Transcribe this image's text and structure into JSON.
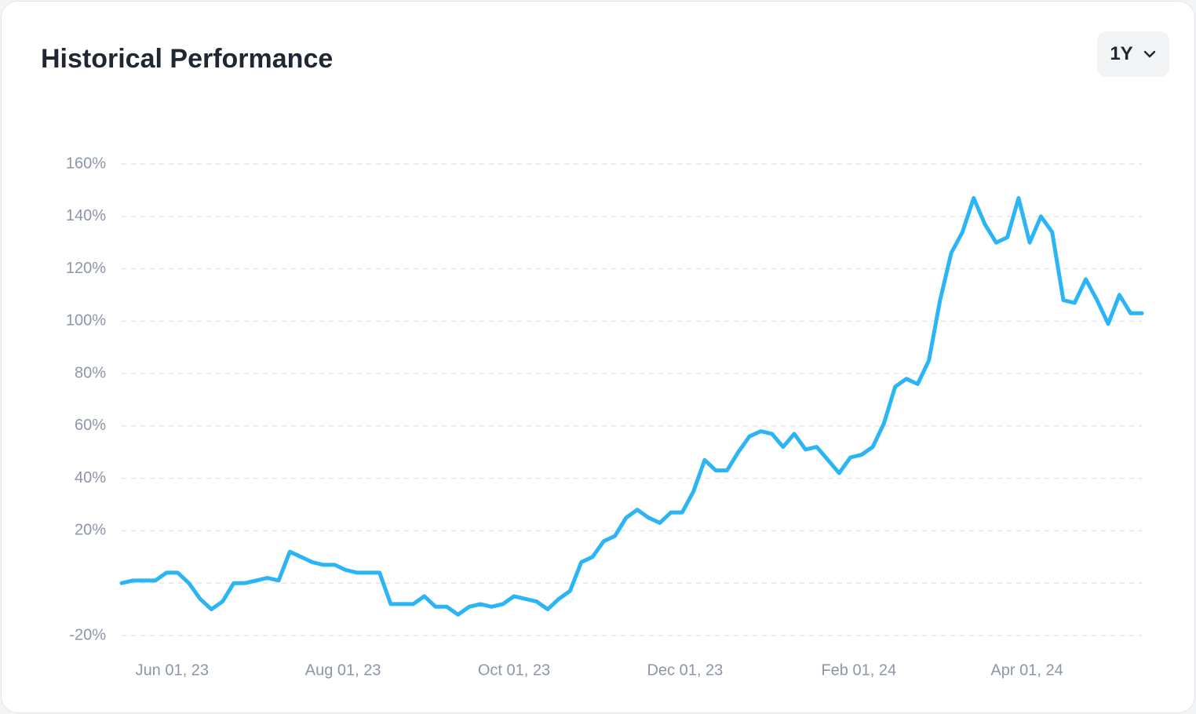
{
  "controls": {
    "range": "1Y"
  },
  "chart_data": {
    "type": "line",
    "title": "Historical Performance",
    "color": "#2bb5f5",
    "grid": true,
    "x": [
      "2023-05-14",
      "2023-05-18",
      "2023-05-22",
      "2023-05-26",
      "2023-05-30",
      "2023-06-03",
      "2023-06-07",
      "2023-06-11",
      "2023-06-15",
      "2023-06-19",
      "2023-06-23",
      "2023-06-27",
      "2023-07-01",
      "2023-07-05",
      "2023-07-09",
      "2023-07-13",
      "2023-07-17",
      "2023-07-21",
      "2023-07-25",
      "2023-07-29",
      "2023-08-02",
      "2023-08-06",
      "2023-08-10",
      "2023-08-14",
      "2023-08-18",
      "2023-08-22",
      "2023-08-26",
      "2023-08-30",
      "2023-09-03",
      "2023-09-07",
      "2023-09-11",
      "2023-09-15",
      "2023-09-19",
      "2023-09-23",
      "2023-09-27",
      "2023-10-01",
      "2023-10-05",
      "2023-10-09",
      "2023-10-13",
      "2023-10-17",
      "2023-10-21",
      "2023-10-25",
      "2023-10-29",
      "2023-11-02",
      "2023-11-06",
      "2023-11-10",
      "2023-11-14",
      "2023-11-18",
      "2023-11-22",
      "2023-11-26",
      "2023-11-30",
      "2023-12-04",
      "2023-12-08",
      "2023-12-12",
      "2023-12-16",
      "2023-12-20",
      "2023-12-24",
      "2023-12-28",
      "2024-01-01",
      "2024-01-05",
      "2024-01-09",
      "2024-01-13",
      "2024-01-17",
      "2024-01-21",
      "2024-01-25",
      "2024-01-29",
      "2024-02-02",
      "2024-02-06",
      "2024-02-10",
      "2024-02-14",
      "2024-02-18",
      "2024-02-22",
      "2024-02-26",
      "2024-03-01",
      "2024-03-05",
      "2024-03-09",
      "2024-03-13",
      "2024-03-17",
      "2024-03-21",
      "2024-03-25",
      "2024-03-29",
      "2024-04-02",
      "2024-04-06",
      "2024-04-10",
      "2024-04-14",
      "2024-04-18",
      "2024-04-22",
      "2024-04-26",
      "2024-04-30",
      "2024-05-04",
      "2024-05-08",
      "2024-05-12"
    ],
    "values": [
      0,
      1,
      1,
      1,
      4,
      4,
      0,
      -6,
      -10,
      -7,
      0,
      0,
      1,
      2,
      1,
      12,
      10,
      8,
      7,
      7,
      5,
      4,
      4,
      4,
      -8,
      -8,
      -8,
      -5,
      -9,
      -9,
      -12,
      -9,
      -8,
      -9,
      -8,
      -5,
      -6,
      -7,
      -10,
      -6,
      -3,
      8,
      10,
      16,
      18,
      25,
      28,
      25,
      23,
      27,
      27,
      35,
      47,
      43,
      43,
      50,
      56,
      58,
      57,
      52,
      57,
      51,
      52,
      47,
      42,
      48,
      49,
      52,
      61,
      75,
      78,
      76,
      85,
      108,
      126,
      134,
      147,
      137,
      130,
      132,
      147,
      130,
      140,
      134,
      108,
      107,
      116,
      108,
      99,
      110,
      103,
      103
    ],
    "xlim": [
      "2023-05-14",
      "2024-05-12"
    ],
    "xticks": [
      {
        "value": "2023-06-01",
        "label": "Jun 01, 23"
      },
      {
        "value": "2023-08-01",
        "label": "Aug 01, 23"
      },
      {
        "value": "2023-10-01",
        "label": "Oct 01, 23"
      },
      {
        "value": "2023-12-01",
        "label": "Dec 01, 23"
      },
      {
        "value": "2024-02-01",
        "label": "Feb 01, 24"
      },
      {
        "value": "2024-04-01",
        "label": "Apr 01, 24"
      }
    ],
    "ylim": [
      -20,
      160
    ],
    "yticks": [
      {
        "value": -20,
        "label": "-20%"
      },
      {
        "value": 0,
        "label": null
      },
      {
        "value": 20,
        "label": "20%"
      },
      {
        "value": 40,
        "label": "40%"
      },
      {
        "value": 60,
        "label": "60%"
      },
      {
        "value": 80,
        "label": "80%"
      },
      {
        "value": 100,
        "label": "100%"
      },
      {
        "value": 120,
        "label": "120%"
      },
      {
        "value": 140,
        "label": "140%"
      },
      {
        "value": 160,
        "label": "160%"
      }
    ]
  }
}
